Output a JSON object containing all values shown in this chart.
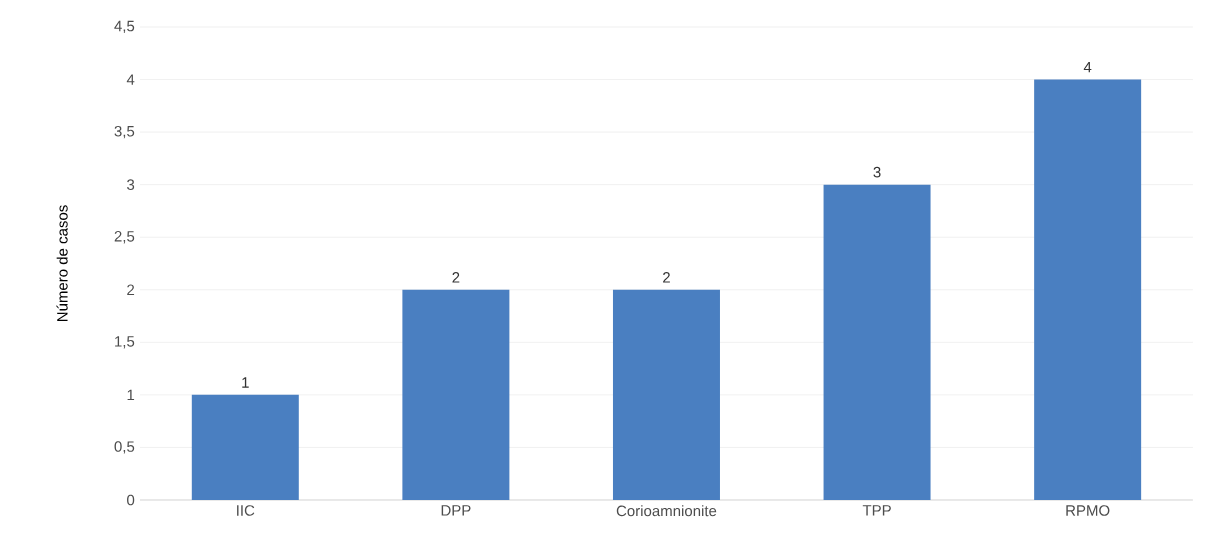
{
  "chart_data": {
    "type": "bar",
    "ylabel": "Número de casos",
    "categories": [
      "IIC",
      "DPP",
      "Corioamnionite",
      "TPP",
      "RPMO"
    ],
    "values": [
      1,
      2,
      2,
      3,
      4
    ],
    "color": "#4a7fc1",
    "ylim": [
      0,
      4.5
    ],
    "yticks": [
      0,
      {
        "value": 0.5,
        "label": "0,5"
      },
      1,
      {
        "value": 1.5,
        "label": "1,5"
      },
      2,
      {
        "value": 2.5,
        "label": "2,5"
      },
      3,
      {
        "value": 3.5,
        "label": "3,5"
      },
      4,
      {
        "value": 4.5,
        "label": "4,5"
      }
    ],
    "grid": "y",
    "data_labels": true
  }
}
